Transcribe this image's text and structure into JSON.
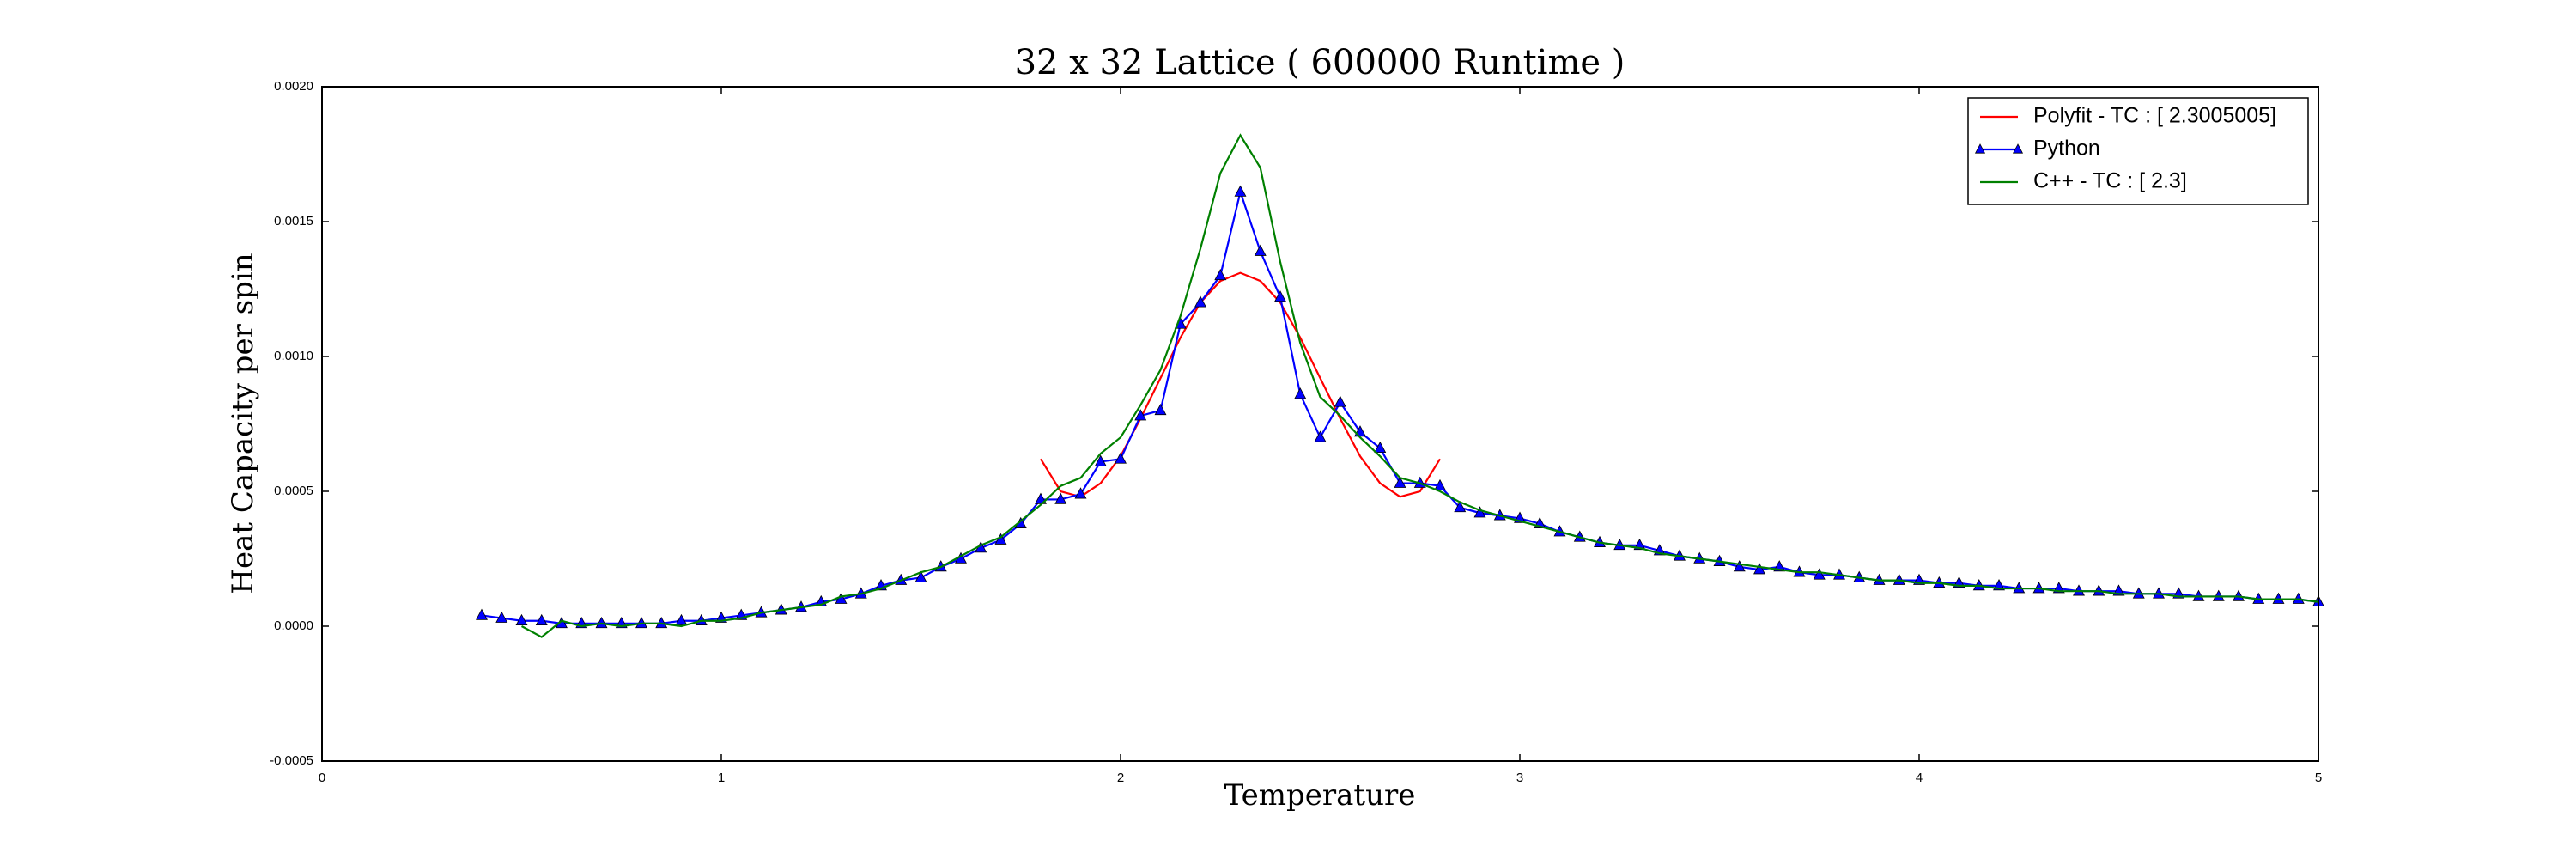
{
  "chart_data": {
    "type": "line",
    "title": "32 x 32 Lattice ( 600000 Runtime )",
    "xlabel": "Temperature",
    "ylabel": "Heat Capacity per spin",
    "xlim": [
      0,
      5
    ],
    "ylim": [
      -0.0005,
      0.002
    ],
    "xticks": [
      0,
      1,
      2,
      3,
      4,
      5
    ],
    "yticks": [
      {
        "value": -0.0005,
        "label": "-0.0005"
      },
      {
        "value": 0,
        "label": "0.0000"
      },
      {
        "value": 0.0005,
        "label": "0.0005"
      },
      {
        "value": 0.001,
        "label": "0.0010"
      },
      {
        "value": 0.0015,
        "label": "0.0015"
      },
      {
        "value": 0.002,
        "label": "0.0020"
      }
    ],
    "legend": "upper right",
    "series": [
      {
        "name": "Polyfit - TC : [ 2.3005005]",
        "color": "#ff0000",
        "marker": "none",
        "x": [
          1.8,
          1.85,
          1.9,
          1.95,
          2.0,
          2.05,
          2.1,
          2.15,
          2.2,
          2.25,
          2.3,
          2.35,
          2.4,
          2.45,
          2.5,
          2.55,
          2.6,
          2.65,
          2.7,
          2.75,
          2.8
        ],
        "values": [
          0.00062,
          0.0005,
          0.00048,
          0.00053,
          0.00063,
          0.00077,
          0.00092,
          0.00107,
          0.0012,
          0.00128,
          0.00131,
          0.00128,
          0.0012,
          0.00107,
          0.00092,
          0.00077,
          0.00063,
          0.00053,
          0.00048,
          0.0005,
          0.00062
        ]
      },
      {
        "name": "Python",
        "color": "#0000ff",
        "marker": "^",
        "x": [
          0.4,
          0.45,
          0.5,
          0.55,
          0.6,
          0.65,
          0.7,
          0.75,
          0.8,
          0.85,
          0.9,
          0.95,
          1.0,
          1.05,
          1.1,
          1.15,
          1.2,
          1.25,
          1.3,
          1.35,
          1.4,
          1.45,
          1.5,
          1.55,
          1.6,
          1.65,
          1.7,
          1.75,
          1.8,
          1.85,
          1.9,
          1.95,
          2.0,
          2.05,
          2.1,
          2.15,
          2.2,
          2.25,
          2.3,
          2.35,
          2.4,
          2.45,
          2.5,
          2.55,
          2.6,
          2.65,
          2.7,
          2.75,
          2.8,
          2.85,
          2.9,
          2.95,
          3.0,
          3.05,
          3.1,
          3.15,
          3.2,
          3.25,
          3.3,
          3.35,
          3.4,
          3.45,
          3.5,
          3.55,
          3.6,
          3.65,
          3.7,
          3.75,
          3.8,
          3.85,
          3.9,
          3.95,
          4.0,
          4.05,
          4.1,
          4.15,
          4.2,
          4.25,
          4.3,
          4.35,
          4.4,
          4.45,
          4.5,
          4.55,
          4.6,
          4.65,
          4.7,
          4.75,
          4.8,
          4.85,
          4.9,
          4.95,
          5.0
        ],
        "values": [
          4e-05,
          3e-05,
          2e-05,
          2e-05,
          1e-05,
          1e-05,
          1e-05,
          1e-05,
          1e-05,
          1e-05,
          2e-05,
          2e-05,
          3e-05,
          4e-05,
          5e-05,
          6e-05,
          7e-05,
          9e-05,
          0.0001,
          0.00012,
          0.00015,
          0.00017,
          0.00018,
          0.00022,
          0.00025,
          0.00029,
          0.00032,
          0.00038,
          0.00047,
          0.00047,
          0.00049,
          0.00061,
          0.00062,
          0.00078,
          0.0008,
          0.00112,
          0.0012,
          0.0013,
          0.00161,
          0.00139,
          0.00122,
          0.00086,
          0.0007,
          0.00083,
          0.00072,
          0.00066,
          0.00053,
          0.00053,
          0.00052,
          0.00044,
          0.00042,
          0.00041,
          0.0004,
          0.00038,
          0.00035,
          0.00033,
          0.00031,
          0.0003,
          0.0003,
          0.00028,
          0.00026,
          0.00025,
          0.00024,
          0.00022,
          0.00021,
          0.00022,
          0.0002,
          0.00019,
          0.00019,
          0.00018,
          0.00017,
          0.00017,
          0.00017,
          0.00016,
          0.00016,
          0.00015,
          0.00015,
          0.00014,
          0.00014,
          0.00014,
          0.00013,
          0.00013,
          0.00013,
          0.00012,
          0.00012,
          0.00012,
          0.00011,
          0.00011,
          0.00011,
          0.0001,
          0.0001,
          0.0001,
          9e-05
        ]
      },
      {
        "name": "C++ - TC : [ 2.3]",
        "color": "#008000",
        "marker": "none",
        "x": [
          0.5,
          0.55,
          0.6,
          0.65,
          0.7,
          0.75,
          0.8,
          0.85,
          0.9,
          0.95,
          1.0,
          1.05,
          1.1,
          1.15,
          1.2,
          1.25,
          1.3,
          1.35,
          1.4,
          1.45,
          1.5,
          1.55,
          1.6,
          1.65,
          1.7,
          1.75,
          1.8,
          1.85,
          1.9,
          1.95,
          2.0,
          2.05,
          2.1,
          2.15,
          2.2,
          2.25,
          2.3,
          2.35,
          2.4,
          2.45,
          2.5,
          2.55,
          2.6,
          2.65,
          2.7,
          2.75,
          2.8,
          2.85,
          2.9,
          2.95,
          3.0,
          3.05,
          3.1,
          3.15,
          3.2,
          3.25,
          3.3,
          3.35,
          3.4,
          3.45,
          3.5,
          3.55,
          3.6,
          3.65,
          3.7,
          3.75,
          3.8,
          3.85,
          3.9,
          3.95,
          4.0,
          4.05,
          4.1,
          4.15,
          4.2,
          4.25,
          4.3,
          4.35,
          4.4,
          4.45,
          4.5,
          4.55,
          4.6,
          4.65,
          4.7,
          4.75,
          4.8,
          4.85,
          4.9,
          4.95,
          5.0
        ],
        "values": [
          0,
          -4e-05,
          2e-05,
          0,
          1e-05,
          0,
          1e-05,
          1e-05,
          0,
          2e-05,
          2e-05,
          3e-05,
          5e-05,
          6e-05,
          7e-05,
          8e-05,
          0.00011,
          0.00012,
          0.00014,
          0.00017,
          0.0002,
          0.00022,
          0.00026,
          0.0003,
          0.00033,
          0.00039,
          0.00045,
          0.00052,
          0.00055,
          0.00064,
          0.0007,
          0.00082,
          0.00095,
          0.00115,
          0.0014,
          0.00168,
          0.00182,
          0.0017,
          0.00135,
          0.00105,
          0.00085,
          0.00078,
          0.0007,
          0.00063,
          0.00055,
          0.00053,
          0.0005,
          0.00046,
          0.00043,
          0.00041,
          0.00039,
          0.00037,
          0.00035,
          0.00033,
          0.00031,
          0.0003,
          0.00029,
          0.00027,
          0.00026,
          0.00025,
          0.00024,
          0.00023,
          0.00022,
          0.00021,
          0.0002,
          0.0002,
          0.00019,
          0.00018,
          0.00017,
          0.00017,
          0.00016,
          0.00016,
          0.00015,
          0.00015,
          0.00014,
          0.00014,
          0.00014,
          0.00013,
          0.00013,
          0.00013,
          0.00012,
          0.00012,
          0.00012,
          0.00011,
          0.00011,
          0.00011,
          0.00011,
          0.0001,
          0.0001,
          0.0001,
          9e-05
        ]
      }
    ]
  }
}
